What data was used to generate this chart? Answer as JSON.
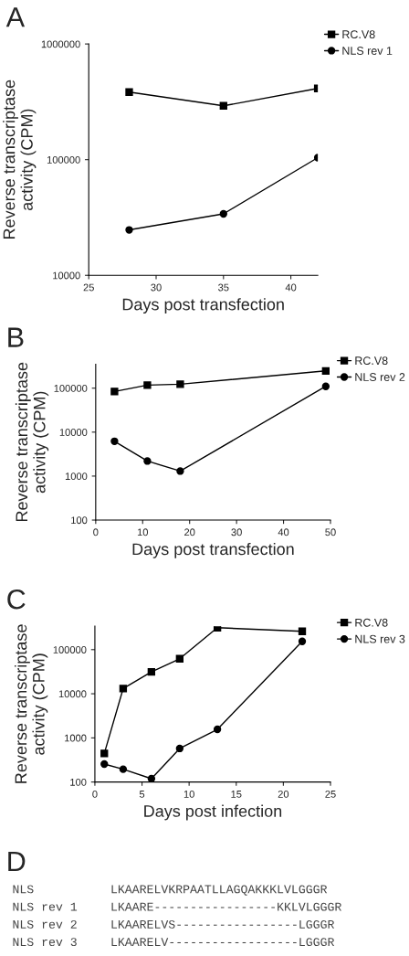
{
  "chart_data": [
    {
      "type": "line",
      "title": "A",
      "xlabel": "Days post transfection",
      "ylabel": "Reverse transcriptase\nactivity (CPM)",
      "log": true,
      "legend": "top right",
      "xlim": [
        25,
        42
      ],
      "xticks": [
        25,
        30,
        35,
        40
      ],
      "ylim": [
        10000,
        1000000
      ],
      "yticks": [
        10000,
        100000,
        1000000
      ],
      "series": [
        {
          "name": "RC.V8",
          "color": "#000000",
          "marker": "square",
          "x": [
            28,
            35,
            42
          ],
          "values": [
            384000,
            292000,
            413000
          ]
        },
        {
          "name": "NLS rev 1",
          "color": "#000000",
          "marker": "circle",
          "x": [
            28,
            35,
            42
          ],
          "values": [
            24700,
            34000,
            104000
          ]
        }
      ]
    },
    {
      "type": "line",
      "title": "B",
      "xlabel": "Days post transfection",
      "ylabel": "Reverse transcriptase\nactivity (CPM)",
      "log": true,
      "legend": "top right",
      "xlim": [
        0,
        50
      ],
      "xticks": [
        0,
        10,
        20,
        30,
        40,
        50
      ],
      "ylim": [
        100,
        350000
      ],
      "yticks": [
        100,
        1000,
        10000,
        100000
      ],
      "series": [
        {
          "name": "RC.V8",
          "color": "#000000",
          "marker": "square",
          "x": [
            4,
            11,
            18,
            49
          ],
          "values": [
            84000,
            117000,
            123000,
            247000
          ]
        },
        {
          "name": "NLS rev 2",
          "color": "#000000",
          "marker": "circle",
          "x": [
            4,
            11,
            18,
            49
          ],
          "values": [
            6200,
            2200,
            1300,
            110000
          ]
        }
      ]
    },
    {
      "type": "line",
      "title": "C",
      "xlabel": "Days post infection",
      "ylabel": "Reverse transcriptase\nactivity (CPM)",
      "log": true,
      "legend": "top right",
      "xlim": [
        0,
        25
      ],
      "xticks": [
        0,
        5,
        10,
        15,
        20,
        25
      ],
      "ylim": [
        100,
        340000
      ],
      "yticks": [
        100,
        1000,
        10000,
        100000
      ],
      "series": [
        {
          "name": "RC.V8",
          "color": "#000000",
          "marker": "square",
          "x": [
            1,
            3,
            6,
            9,
            13,
            22
          ],
          "values": [
            445,
            13100,
            31400,
            62100,
            314000,
            260000
          ]
        },
        {
          "name": "NLS rev 3",
          "color": "#000000",
          "marker": "circle",
          "x": [
            1,
            3,
            6,
            9,
            13,
            22
          ],
          "values": [
            255,
            195,
            119,
            575,
            1560,
            154000
          ]
        }
      ]
    },
    {
      "type": "other",
      "title": "D",
      "annotations": [
        "NLS",
        "LKAARELVKRPAATLLAGQAKKKLVLGGGR",
        "NLS rev 1",
        "LKAARE-----------------KKLVLGGGR",
        "NLS rev 2",
        "LKAARELVS-----------------LGGGR",
        "NLS rev 3",
        "LKAARELV------------------LGGGR"
      ]
    }
  ]
}
